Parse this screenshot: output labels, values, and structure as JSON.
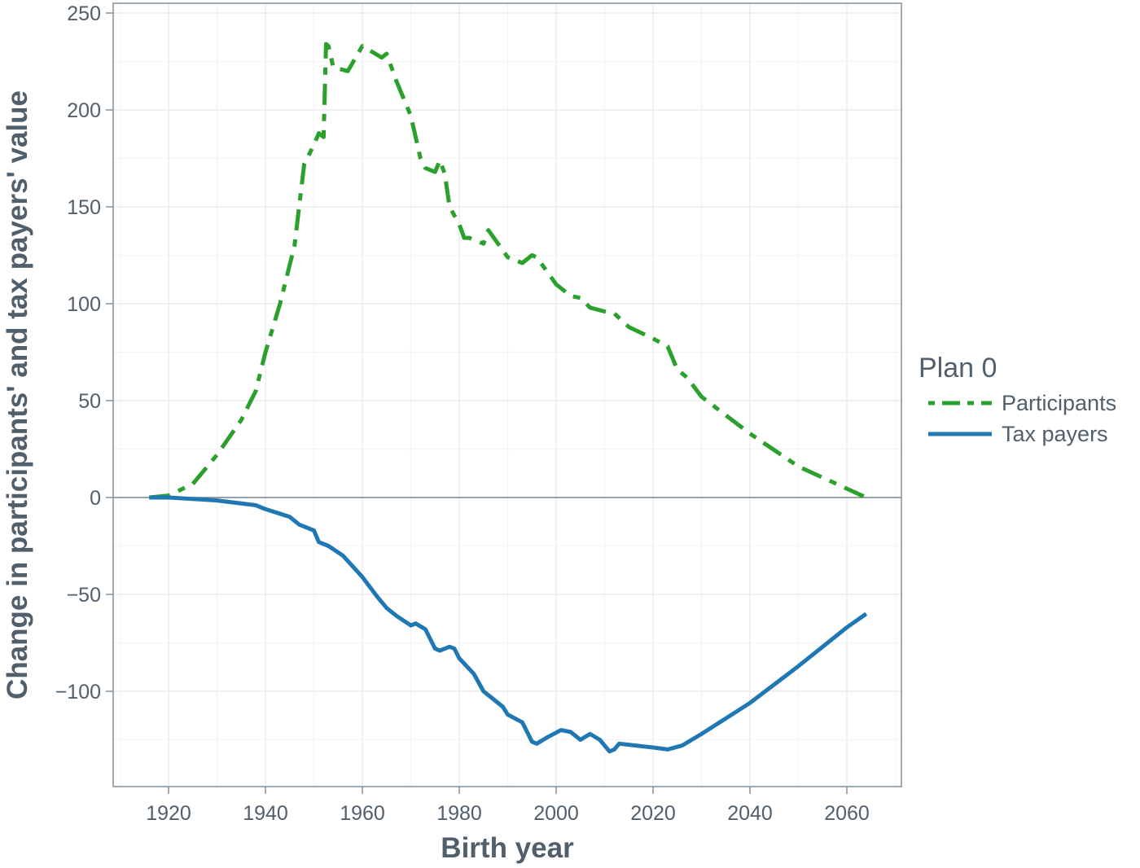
{
  "chart_data": {
    "type": "line",
    "title": "",
    "xlabel": "Birth year",
    "ylabel": "Change in participants' and tax payers' value",
    "xlim": [
      1909,
      2071
    ],
    "ylim": [
      -148,
      252
    ],
    "x_ticks": [
      1920,
      1940,
      1960,
      1980,
      2000,
      2020,
      2040,
      2060
    ],
    "y_ticks": [
      -100,
      -50,
      0,
      50,
      100,
      150,
      200,
      250
    ],
    "y_tick_labels": [
      "−100",
      "−50",
      "0",
      "50",
      "100",
      "150",
      "200",
      "250"
    ],
    "grid": true,
    "legend": {
      "title": "Plan 0",
      "position": "right"
    },
    "series": [
      {
        "name": "Participants",
        "color": "#2ca02c",
        "linestyle": "dashdot",
        "x": [
          1916,
          1920,
          1925,
          1930,
          1935,
          1938,
          1940,
          1943,
          1946,
          1948,
          1950,
          1951,
          1952,
          1952.5,
          1953,
          1954,
          1957,
          1960,
          1962,
          1964,
          1965,
          1967,
          1970,
          1972,
          1973,
          1975,
          1976,
          1977,
          1978,
          1980,
          1981,
          1982,
          1985,
          1986,
          1990,
          1993,
          1995,
          1996,
          2000,
          2003,
          2005,
          2007,
          2010,
          2012,
          2015,
          2020,
          2023,
          2025,
          2027,
          2030,
          2040,
          2050,
          2064
        ],
        "values": [
          0,
          1,
          7,
          22,
          40,
          55,
          75,
          100,
          130,
          172,
          182,
          188,
          186,
          234,
          233,
          222,
          220,
          233,
          230,
          227,
          229,
          215,
          197,
          175,
          170,
          168,
          174,
          167,
          150,
          141,
          134,
          134,
          131,
          138,
          124,
          121,
          125,
          124,
          110,
          104,
          103,
          98,
          96,
          95,
          88,
          82,
          78,
          66,
          62,
          52,
          33,
          16,
          0
        ]
      },
      {
        "name": "Tax payers",
        "color": "#1f77b4",
        "linestyle": "solid",
        "x": [
          1916,
          1920,
          1930,
          1938,
          1940,
          1945,
          1947,
          1950,
          1951,
          1953,
          1956,
          1960,
          1963,
          1965,
          1967,
          1970,
          1971,
          1973,
          1975,
          1976,
          1978,
          1979,
          1980,
          1983,
          1985,
          1987,
          1989,
          1990,
          1993,
          1995,
          1996,
          1998,
          2001,
          2003,
          2005,
          2007,
          2009,
          2011,
          2012,
          2013,
          2020,
          2023,
          2026,
          2030,
          2040,
          2050,
          2060,
          2064
        ],
        "values": [
          0,
          0,
          -1.5,
          -4,
          -6,
          -10,
          -14,
          -17,
          -23,
          -25,
          -30,
          -41,
          -51,
          -57,
          -61,
          -66,
          -65,
          -68,
          -78,
          -79,
          -77,
          -78,
          -83,
          -91,
          -100,
          -104,
          -108,
          -112,
          -116,
          -126,
          -127,
          -124,
          -120,
          -121,
          -125,
          -122,
          -125,
          -131,
          -130,
          -127,
          -129,
          -130,
          -128,
          -122,
          -106,
          -87,
          -67,
          -60
        ]
      }
    ]
  }
}
